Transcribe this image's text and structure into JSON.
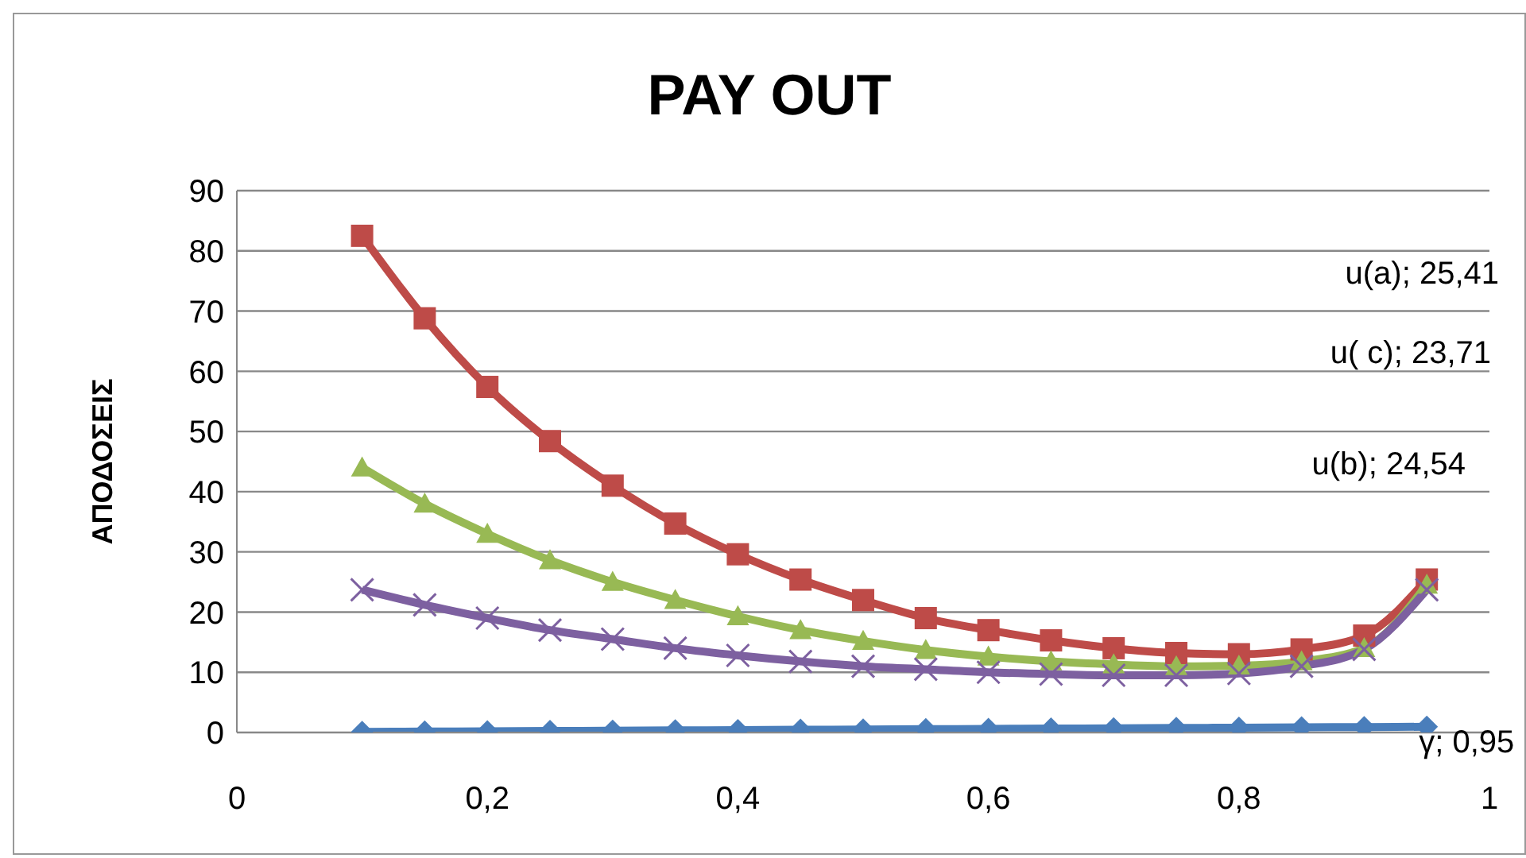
{
  "chart_data": {
    "type": "line",
    "title": "PAY OUT",
    "ylabel": "ΑΠΟΔΟΣΕΙΣ",
    "x": [
      0.1,
      0.15,
      0.2,
      0.25,
      0.3,
      0.35,
      0.4,
      0.45,
      0.5,
      0.55,
      0.6,
      0.65,
      0.7,
      0.75,
      0.8,
      0.85,
      0.9,
      0.95
    ],
    "series": [
      {
        "color": "#4a7ebb",
        "marker": "diamond",
        "values": [
          0.1,
          0.15,
          0.2,
          0.25,
          0.3,
          0.35,
          0.4,
          0.45,
          0.5,
          0.55,
          0.6,
          0.65,
          0.7,
          0.75,
          0.8,
          0.85,
          0.9,
          0.95
        ]
      },
      {
        "color": "#be4b48",
        "marker": "square",
        "values": [
          82.5,
          68.8,
          57.4,
          48.4,
          41,
          34.7,
          29.6,
          25.4,
          22,
          19,
          17,
          15.3,
          14,
          13.2,
          13,
          13.8,
          16.1,
          25.41
        ]
      },
      {
        "color": "#98b954",
        "marker": "triangle",
        "values": [
          44,
          38,
          33,
          28.6,
          25,
          22,
          19.3,
          17,
          15.2,
          13.7,
          12.6,
          11.8,
          11.3,
          11,
          11.1,
          11.8,
          14,
          24.54
        ]
      },
      {
        "color": "#7d60a0",
        "marker": "cross",
        "values": [
          23.7,
          21.2,
          19,
          17,
          15.5,
          14,
          12.8,
          11.8,
          11,
          10.5,
          10,
          9.7,
          9.5,
          9.5,
          9.8,
          11,
          13.8,
          23.71
        ]
      }
    ],
    "annotations": [
      "u(a); 25,41",
      "u(  c); 23,71",
      "u(b); 24,54",
      {
        "text": "γ; 0,95",
        "x": 0.95,
        "y": 0.95
      }
    ],
    "xlim": [
      0,
      1
    ],
    "xticks": [
      0,
      {
        "value": 0.2,
        "label": "0,2"
      },
      {
        "value": 0.4,
        "label": "0,4"
      },
      {
        "value": 0.6,
        "label": "0,6"
      },
      {
        "value": 0.8,
        "label": "0,8"
      },
      1
    ],
    "ylim": [
      0,
      90
    ],
    "yticks": [
      0,
      10,
      20,
      30,
      40,
      50,
      60,
      70,
      80,
      90
    ],
    "grid": "y",
    "legend": false
  }
}
